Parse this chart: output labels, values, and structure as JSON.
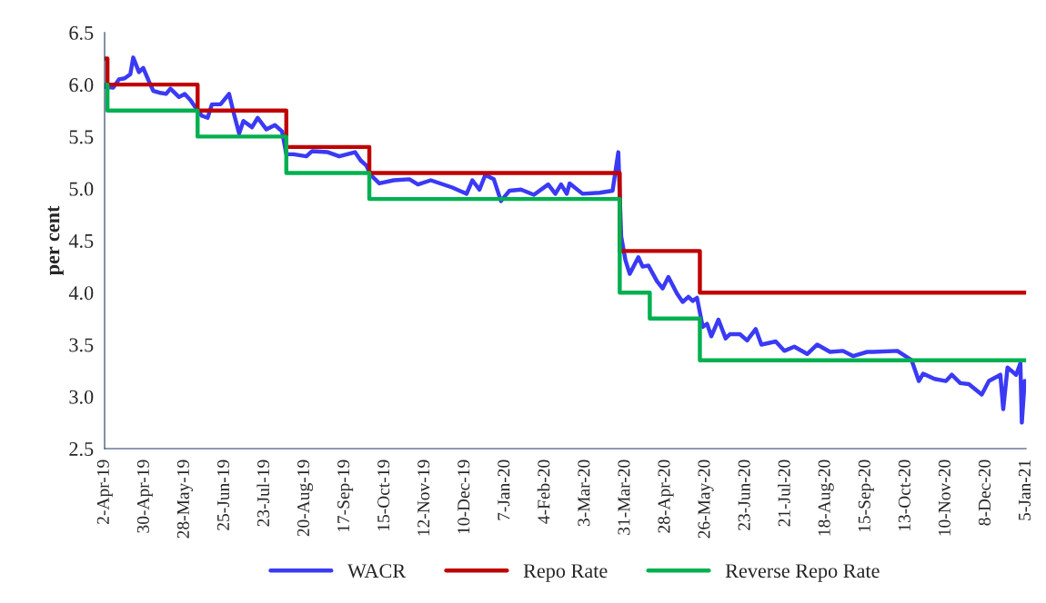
{
  "chart_data": {
    "type": "line",
    "ylabel": "per cent",
    "xlim": [
      "2019-04-02",
      "2021-01-05"
    ],
    "xticks": [
      {
        "value": "2019-04-02",
        "label": "2-Apr-19"
      },
      {
        "value": "2019-04-30",
        "label": "30-Apr-19"
      },
      {
        "value": "2019-05-28",
        "label": "28-May-19"
      },
      {
        "value": "2019-06-25",
        "label": "25-Jun-19"
      },
      {
        "value": "2019-07-23",
        "label": "23-Jul-19"
      },
      {
        "value": "2019-08-20",
        "label": "20-Aug-19"
      },
      {
        "value": "2019-09-17",
        "label": "17-Sep-19"
      },
      {
        "value": "2019-10-15",
        "label": "15-Oct-19"
      },
      {
        "value": "2019-11-12",
        "label": "12-Nov-19"
      },
      {
        "value": "2019-12-10",
        "label": "10-Dec-19"
      },
      {
        "value": "2020-01-07",
        "label": "7-Jan-20"
      },
      {
        "value": "2020-02-04",
        "label": "4-Feb-20"
      },
      {
        "value": "2020-03-03",
        "label": "3-Mar-20"
      },
      {
        "value": "2020-03-31",
        "label": "31-Mar-20"
      },
      {
        "value": "2020-04-28",
        "label": "28-Apr-20"
      },
      {
        "value": "2020-05-26",
        "label": "26-May-20"
      },
      {
        "value": "2020-06-23",
        "label": "23-Jun-20"
      },
      {
        "value": "2020-07-21",
        "label": "21-Jul-20"
      },
      {
        "value": "2020-08-18",
        "label": "18-Aug-20"
      },
      {
        "value": "2020-09-15",
        "label": "15-Sep-20"
      },
      {
        "value": "2020-10-13",
        "label": "13-Oct-20"
      },
      {
        "value": "2020-11-10",
        "label": "10-Nov-20"
      },
      {
        "value": "2020-12-08",
        "label": "8-Dec-20"
      },
      {
        "value": "2021-01-05",
        "label": "5-Jan-21"
      }
    ],
    "ylim": [
      2.5,
      6.5
    ],
    "yticks": [
      {
        "value": 2.5,
        "label": "2.5"
      },
      {
        "value": 3.0,
        "label": "3.0"
      },
      {
        "value": 3.5,
        "label": "3.5"
      },
      {
        "value": 4.0,
        "label": "4.0"
      },
      {
        "value": 4.5,
        "label": "4.5"
      },
      {
        "value": 5.0,
        "label": "5.0"
      },
      {
        "value": 5.5,
        "label": "5.5"
      },
      {
        "value": 6.0,
        "label": "6.0"
      },
      {
        "value": 6.5,
        "label": "6.5"
      }
    ],
    "grid": false,
    "legend": "bottom",
    "marker": "none",
    "line_style": "solid",
    "series": [
      {
        "name": "WACR",
        "color": "#3a3af5",
        "x": [
          "2019-04-02",
          "2019-04-08",
          "2019-04-12",
          "2019-04-16",
          "2019-04-20",
          "2019-04-22",
          "2019-04-26",
          "2019-04-29",
          "2019-05-03",
          "2019-05-06",
          "2019-05-11",
          "2019-05-15",
          "2019-05-18",
          "2019-05-24",
          "2019-05-28",
          "2019-06-01",
          "2019-06-06",
          "2019-06-09",
          "2019-06-13",
          "2019-06-16",
          "2019-06-22",
          "2019-06-28",
          "2019-07-01",
          "2019-07-05",
          "2019-07-08",
          "2019-07-14",
          "2019-07-18",
          "2019-07-24",
          "2019-07-30",
          "2019-08-04",
          "2019-08-07",
          "2019-08-12",
          "2019-08-21",
          "2019-08-25",
          "2019-09-05",
          "2019-09-13",
          "2019-09-24",
          "2019-09-28",
          "2019-10-02",
          "2019-10-05",
          "2019-10-11",
          "2019-10-21",
          "2019-11-01",
          "2019-11-07",
          "2019-11-16",
          "2019-12-01",
          "2019-12-11",
          "2019-12-15",
          "2019-12-20",
          "2019-12-24",
          "2019-12-30",
          "2020-01-04",
          "2020-01-10",
          "2020-01-18",
          "2020-01-27",
          "2020-02-06",
          "2020-02-11",
          "2020-02-15",
          "2020-02-19",
          "2020-02-21",
          "2020-03-01",
          "2020-03-13",
          "2020-03-22",
          "2020-03-26",
          "2020-03-28",
          "2020-03-31",
          "2020-04-03",
          "2020-04-09",
          "2020-04-12",
          "2020-04-16",
          "2020-04-22",
          "2020-04-26",
          "2020-04-30",
          "2020-05-06",
          "2020-05-10",
          "2020-05-14",
          "2020-05-17",
          "2020-05-20",
          "2020-05-24",
          "2020-05-27",
          "2020-05-30",
          "2020-06-04",
          "2020-06-09",
          "2020-06-12",
          "2020-06-19",
          "2020-06-24",
          "2020-06-30",
          "2020-07-04",
          "2020-07-14",
          "2020-07-20",
          "2020-07-27",
          "2020-08-05",
          "2020-08-12",
          "2020-08-21",
          "2020-08-30",
          "2020-09-06",
          "2020-09-16",
          "2020-09-20",
          "2020-10-07",
          "2020-10-17",
          "2020-10-22",
          "2020-10-25",
          "2020-11-02",
          "2020-11-10",
          "2020-11-14",
          "2020-11-20",
          "2020-11-26",
          "2020-12-05",
          "2020-12-10",
          "2020-12-18",
          "2020-12-20",
          "2020-12-23",
          "2020-12-29",
          "2021-01-01",
          "2021-01-02",
          "2021-01-04"
        ],
        "values": [
          5.98,
          5.97,
          6.05,
          6.06,
          6.1,
          6.26,
          6.12,
          6.16,
          6.03,
          5.94,
          5.92,
          5.91,
          5.96,
          5.88,
          5.91,
          5.85,
          5.75,
          5.7,
          5.68,
          5.81,
          5.81,
          5.91,
          5.74,
          5.53,
          5.65,
          5.59,
          5.68,
          5.57,
          5.61,
          5.55,
          5.33,
          5.33,
          5.31,
          5.36,
          5.35,
          5.31,
          5.35,
          5.27,
          5.22,
          5.13,
          5.05,
          5.08,
          5.09,
          5.04,
          5.08,
          5.01,
          4.95,
          5.08,
          4.99,
          5.13,
          5.09,
          4.88,
          4.98,
          4.99,
          4.94,
          5.04,
          4.95,
          5.04,
          4.95,
          5.05,
          4.95,
          4.96,
          4.98,
          5.35,
          4.54,
          4.31,
          4.18,
          4.34,
          4.25,
          4.26,
          4.11,
          4.04,
          4.15,
          3.99,
          3.91,
          3.96,
          3.92,
          3.95,
          3.67,
          3.7,
          3.58,
          3.74,
          3.56,
          3.6,
          3.6,
          3.54,
          3.65,
          3.5,
          3.53,
          3.44,
          3.48,
          3.41,
          3.5,
          3.43,
          3.44,
          3.39,
          3.43,
          3.43,
          3.44,
          3.35,
          3.15,
          3.22,
          3.17,
          3.15,
          3.21,
          3.13,
          3.12,
          3.02,
          3.15,
          3.21,
          2.88,
          3.28,
          3.21,
          3.32,
          2.75,
          3.15
        ]
      },
      {
        "name": "Repo Rate",
        "type": "step",
        "color": "#c00000",
        "x": [
          "2019-04-02",
          "2019-04-04",
          "2019-06-06",
          "2019-08-07",
          "2019-10-04",
          "2020-03-27",
          "2020-05-22",
          "2021-01-05"
        ],
        "values": [
          6.25,
          6.0,
          5.75,
          5.4,
          5.15,
          4.4,
          4.0,
          4.0
        ]
      },
      {
        "name": "Reverse Repo Rate",
        "type": "step",
        "color": "#00b050",
        "x": [
          "2019-04-02",
          "2019-04-04",
          "2019-06-06",
          "2019-08-07",
          "2019-10-04",
          "2020-03-27",
          "2020-04-17",
          "2020-05-22",
          "2021-01-05"
        ],
        "values": [
          6.0,
          5.75,
          5.5,
          5.15,
          4.9,
          4.0,
          3.75,
          3.35,
          3.35
        ]
      }
    ]
  }
}
